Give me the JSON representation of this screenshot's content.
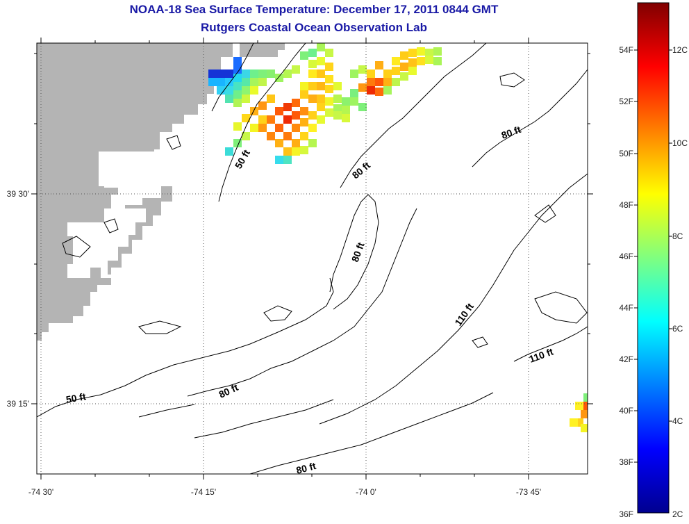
{
  "title": "NOAA-18 Sea Surface Temperature:  December 17, 2011 0844 GMT",
  "subtitle": "Rutgers Coastal Ocean Observation Lab",
  "axes": {
    "x_ticks": [
      "-74 30'",
      "-74 15'",
      "-74 0'",
      "-73 45'"
    ],
    "y_ticks": [
      "39 30'",
      "39 15'"
    ]
  },
  "contour_labels": [
    "50 ft",
    "80 ft",
    "80 ft",
    "80 ft",
    "110 ft",
    "110 ft",
    "80 ft",
    "50 ft",
    "80 ft"
  ],
  "colorbar": {
    "colormap": "jet",
    "fahrenheit_labels": [
      "54F",
      "52F",
      "50F",
      "48F",
      "46F",
      "44F",
      "42F",
      "40F",
      "38F",
      "36F"
    ],
    "celsius_labels": [
      "12C",
      "10C",
      "8C",
      "6C",
      "4C",
      "2C"
    ],
    "min_c": 2,
    "max_c": 13.2
  },
  "colors": {
    "land": "#b4b4b4",
    "title": "#1a1aa6",
    "contour": "#000000"
  }
}
